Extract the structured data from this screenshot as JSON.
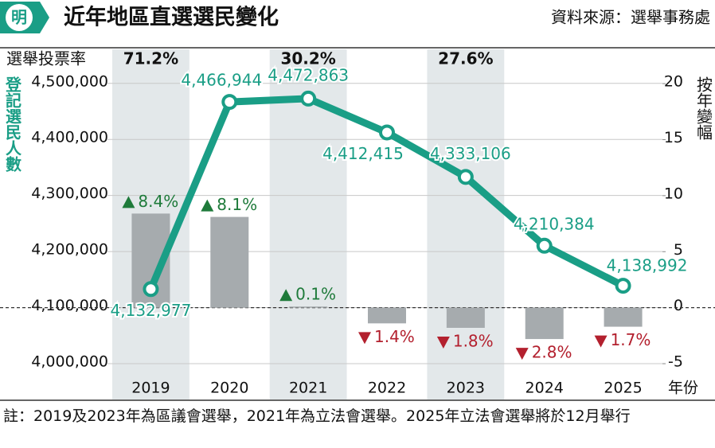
{
  "logo": "明",
  "chart_data": {
    "type": "combo",
    "title": "近年地區直選選民變化",
    "source": "資料來源：選舉事務處",
    "ylabel": "登記選民人數",
    "y2label": "按年變幅",
    "xlabel": "年份",
    "categories": [
      "2019",
      "2020",
      "2021",
      "2022",
      "2023",
      "2024",
      "2025"
    ],
    "turnout": {
      "label": "選舉投票率",
      "values": [
        71.2,
        null,
        30.2,
        null,
        27.6,
        null,
        null
      ],
      "value_labels": [
        "71.2%",
        null,
        "30.2%",
        null,
        "27.6%",
        null,
        null
      ]
    },
    "series": [
      {
        "type": "line",
        "color": "#1a9e86",
        "values": [
          4132977,
          4466944,
          4472863,
          4412415,
          4333106,
          4210384,
          4138992
        ],
        "value_labels": [
          "4,132,977",
          "4,466,944",
          "4,472,863",
          "4,412,415",
          "4,333,106",
          "4,210,384",
          "4,138,992"
        ]
      },
      {
        "type": "bar",
        "axis": "y2",
        "color": "#a6abae",
        "up_color": "#1e7a3a",
        "down_color": "#b3202e",
        "values": [
          8.4,
          8.1,
          0.1,
          -1.4,
          -1.8,
          -2.8,
          -1.7
        ],
        "value_labels": [
          "8.4%",
          "8.1%",
          "0.1%",
          "1.4%",
          "1.8%",
          "2.8%",
          "1.7%"
        ]
      }
    ],
    "ylim": [
      3981500,
      4521000
    ],
    "yticks": [
      {
        "value": 4000000,
        "label": "4,000,000"
      },
      {
        "value": 4100000,
        "label": "4,100,000"
      },
      {
        "value": 4200000,
        "label": "4,200,000"
      },
      {
        "value": 4300000,
        "label": "4,300,000"
      },
      {
        "value": 4400000,
        "label": "4,400,000"
      },
      {
        "value": 4500000,
        "label": "4,500,000"
      }
    ],
    "y2lim": [
      -5.92,
      21.07
    ],
    "y2ticks": [
      -5,
      0,
      5,
      10,
      15,
      20
    ],
    "grid": true,
    "footnote": "註：2019及2023年為區議會選舉，2021年為立法會選舉。2025年立法會選舉將於12月舉行"
  }
}
